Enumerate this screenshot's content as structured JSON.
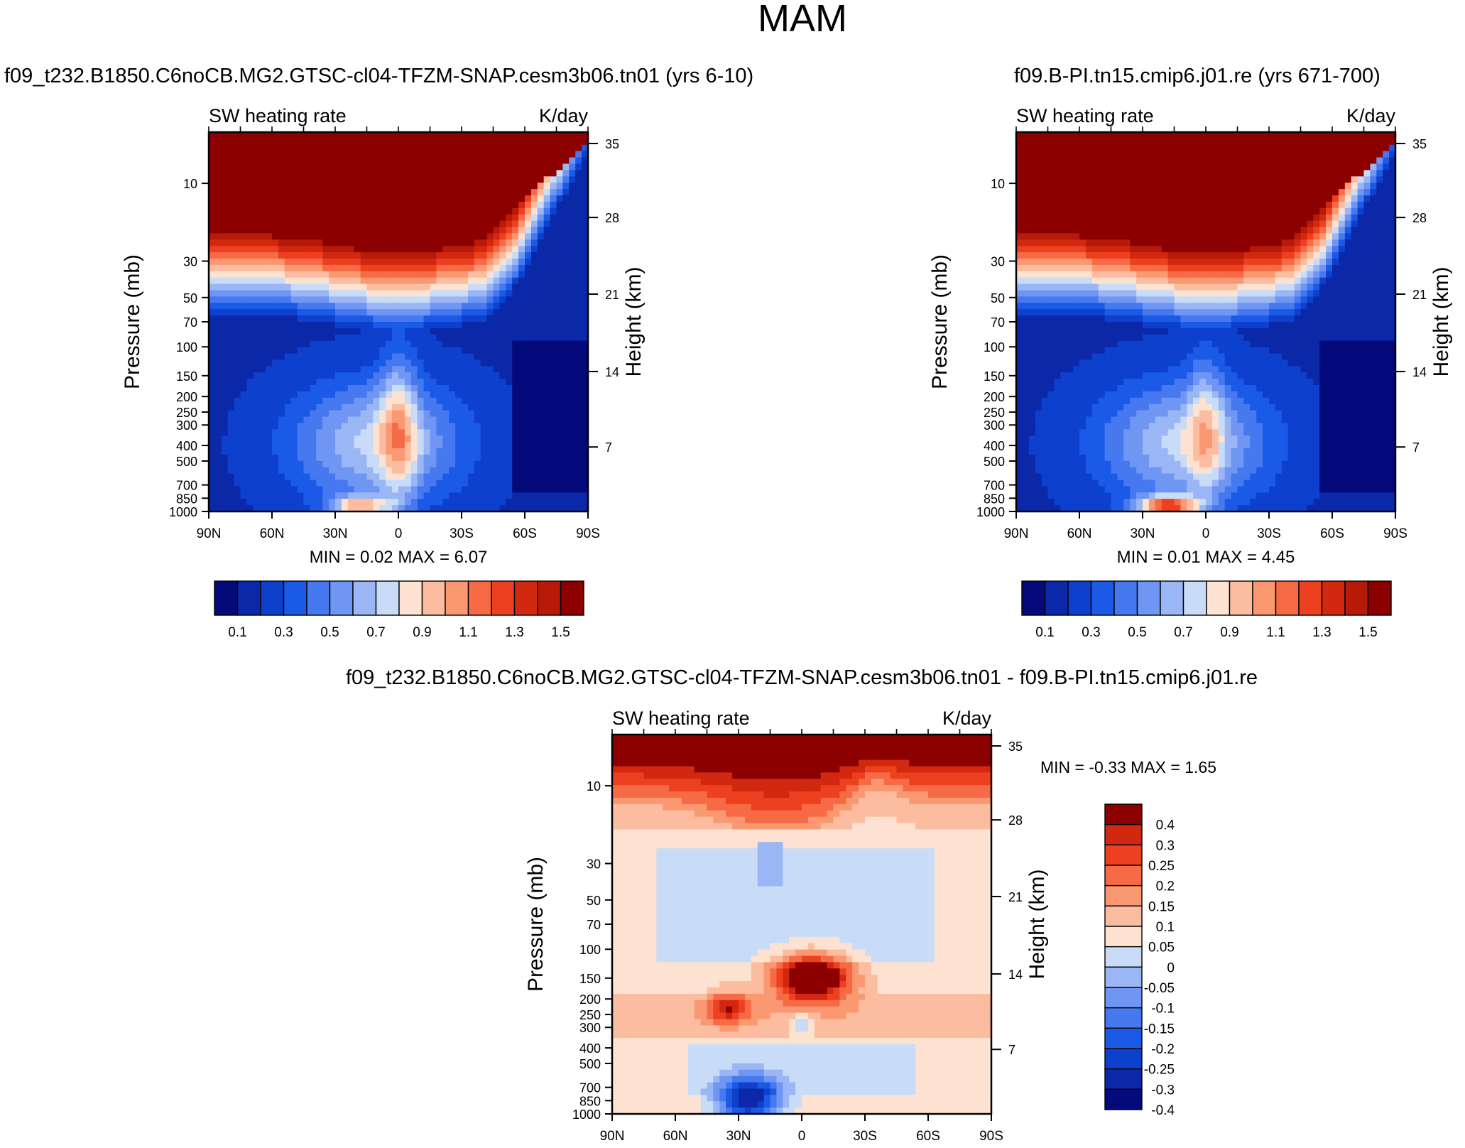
{
  "figure": {
    "title": "MAM"
  },
  "panel_defaults": {
    "field_label": "SW heating rate",
    "units": "K/day",
    "ylabel_left": "Pressure (mb)",
    "ylabel_right": "Height (km)"
  },
  "colors": {
    "palette_13": [
      "#050a7b",
      "#0a28a8",
      "#0d40cc",
      "#1a5ae6",
      "#4679f0",
      "#6f96f2",
      "#9bb6f5",
      "#c8dcf8",
      "#fde2d2",
      "#fcbca0",
      "#fa9872",
      "#f66a45",
      "#ed4020",
      "#d22810",
      "#b71a08",
      "#8c0000"
    ],
    "palette_diff": [
      "#050a7b",
      "#0a28a8",
      "#0d40cc",
      "#1a5ae6",
      "#4679f0",
      "#6f96f2",
      "#9bb6f5",
      "#c8dcf8",
      "#fde2d2",
      "#fcbca0",
      "#fa9872",
      "#f66a45",
      "#ed4020",
      "#d22810",
      "#8c0000"
    ]
  },
  "chart_data": [
    {
      "type": "contour",
      "title": "f09_t232.B1850.C6noCB.MG2.GTSC-cl04-TFZM-SNAP.cesm3b06.tn01 (yrs 6-10)",
      "field_label": "SW heating rate",
      "units": "K/day",
      "ylabel": "Pressure (mb)",
      "ylabel_right": "Height (km)",
      "x_ticks": [
        "90N",
        "60N",
        "30N",
        "0",
        "30S",
        "60S",
        "90S"
      ],
      "y_ticks": [
        "10",
        "30",
        "50",
        "70",
        "100",
        "150",
        "200",
        "250",
        "300",
        "400",
        "500",
        "700",
        "850",
        "1000"
      ],
      "y_ticks_right": [
        "35",
        "28",
        "21",
        "14",
        "7"
      ],
      "stats": "MIN =   0.02  MAX =   6.07",
      "colorbar_labels": [
        "0.1",
        "0.3",
        "0.5",
        "0.7",
        "0.9",
        "1.1",
        "1.3",
        "1.5"
      ],
      "colorbar_orientation": "horizontal"
    },
    {
      "type": "contour",
      "title": "f09.B-PI.tn15.cmip6.j01.re (yrs 671-700)",
      "field_label": "SW heating rate",
      "units": "K/day",
      "ylabel": "Pressure (mb)",
      "ylabel_right": "Height (km)",
      "x_ticks": [
        "90N",
        "60N",
        "30N",
        "0",
        "30S",
        "60S",
        "90S"
      ],
      "y_ticks": [
        "10",
        "30",
        "50",
        "70",
        "100",
        "150",
        "200",
        "250",
        "300",
        "400",
        "500",
        "700",
        "850",
        "1000"
      ],
      "y_ticks_right": [
        "35",
        "28",
        "21",
        "14",
        "7"
      ],
      "stats": "MIN =   0.01  MAX =   4.45",
      "colorbar_labels": [
        "0.1",
        "0.3",
        "0.5",
        "0.7",
        "0.9",
        "1.1",
        "1.3",
        "1.5"
      ],
      "colorbar_orientation": "horizontal"
    },
    {
      "type": "contour",
      "title": "f09_t232.B1850.C6noCB.MG2.GTSC-cl04-TFZM-SNAP.cesm3b06.tn01 - f09.B-PI.tn15.cmip6.j01.re",
      "field_label": "SW heating rate",
      "units": "K/day",
      "ylabel": "Pressure (mb)",
      "ylabel_right": "Height (km)",
      "x_ticks": [
        "90N",
        "60N",
        "30N",
        "0",
        "30S",
        "60S",
        "90S"
      ],
      "y_ticks": [
        "10",
        "30",
        "50",
        "70",
        "100",
        "150",
        "200",
        "250",
        "300",
        "400",
        "500",
        "700",
        "850",
        "1000"
      ],
      "y_ticks_right": [
        "35",
        "28",
        "21",
        "14",
        "7"
      ],
      "stats": "MIN =  -0.33  MAX =   1.65",
      "colorbar_labels": [
        "0.4",
        "0.3",
        "0.25",
        "0.2",
        "0.15",
        "0.1",
        "0.05",
        "0",
        "-0.05",
        "-0.1",
        "-0.15",
        "-0.2",
        "-0.25",
        "-0.3",
        "-0.4"
      ],
      "colorbar_orientation": "vertical"
    }
  ]
}
